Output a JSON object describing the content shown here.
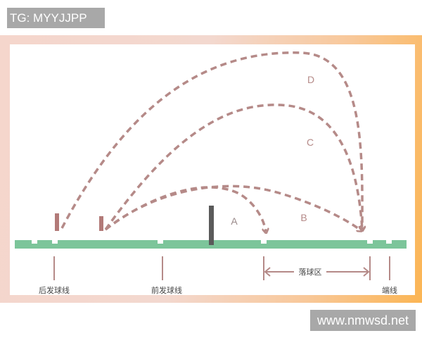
{
  "watermarks": {
    "top_left": "TG: MYYJJPP",
    "bottom_right": "www.nmwsd.net"
  },
  "trajectories": [
    {
      "label": "A"
    },
    {
      "label": "B"
    },
    {
      "label": "C"
    },
    {
      "label": "D"
    }
  ],
  "court_labels": {
    "back_service_line": "后发球线",
    "front_service_line": "前发球线",
    "landing_zone": "落球区",
    "end_line": "端线"
  },
  "colors": {
    "court": "#7cc59a",
    "trajectory": "#b58a88",
    "net": "#5a5a5a",
    "racket": "#b27a78"
  }
}
